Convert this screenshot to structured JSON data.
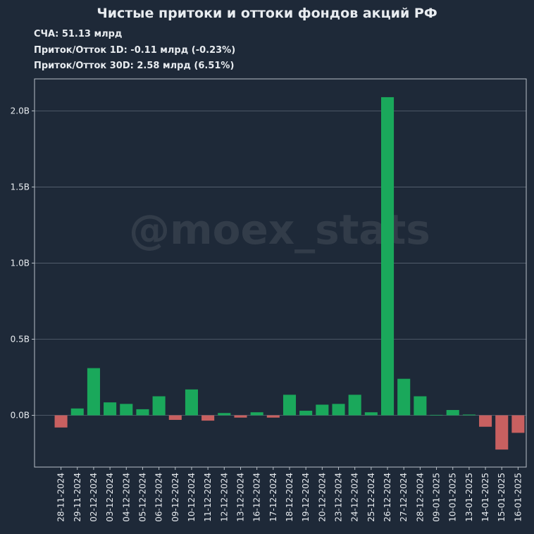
{
  "header": {
    "title": "Чистые притоки и оттоки фондов акций РФ",
    "stats": [
      "СЧА: 51.13 млрд",
      "Приток/Отток 1D: -0.11 млрд (-0.23%)",
      "Приток/Отток 30D: 2.58 млрд (6.51%)"
    ]
  },
  "watermark": "@moex_stats",
  "colors": {
    "background": "#1e2938",
    "positive": "#1aa85b",
    "negative": "#c86060",
    "grid": "#5b6675",
    "text": "#e8ecf0"
  },
  "chart_data": {
    "type": "bar",
    "categories": [
      "28-11-2024",
      "29-11-2024",
      "02-12-2024",
      "03-12-2024",
      "04-12-2024",
      "05-12-2024",
      "06-12-2024",
      "09-12-2024",
      "10-12-2024",
      "11-12-2024",
      "12-12-2024",
      "13-12-2024",
      "16-12-2024",
      "17-12-2024",
      "18-12-2024",
      "19-12-2024",
      "20-12-2024",
      "23-12-2024",
      "24-12-2024",
      "25-12-2024",
      "26-12-2024",
      "27-12-2024",
      "28-12-2024",
      "09-01-2025",
      "10-01-2025",
      "13-01-2025",
      "14-01-2025",
      "15-01-2025",
      "16-01-2025"
    ],
    "values": [
      -0.08,
      0.045,
      0.31,
      0.085,
      0.075,
      0.04,
      0.125,
      -0.03,
      0.17,
      -0.035,
      0.015,
      -0.015,
      0.02,
      -0.015,
      0.135,
      0.03,
      0.07,
      0.075,
      0.135,
      0.02,
      2.09,
      0.24,
      0.125,
      0.003,
      0.035,
      0.005,
      -0.075,
      -0.225,
      -0.115
    ],
    "yticks": [
      0.0,
      0.5,
      1.0,
      1.5,
      2.0
    ],
    "ytick_labels": [
      "0.0B",
      "0.5B",
      "1.0B",
      "1.5B",
      "2.0B"
    ],
    "ylim": [
      -0.34,
      2.21
    ],
    "grid": true
  }
}
